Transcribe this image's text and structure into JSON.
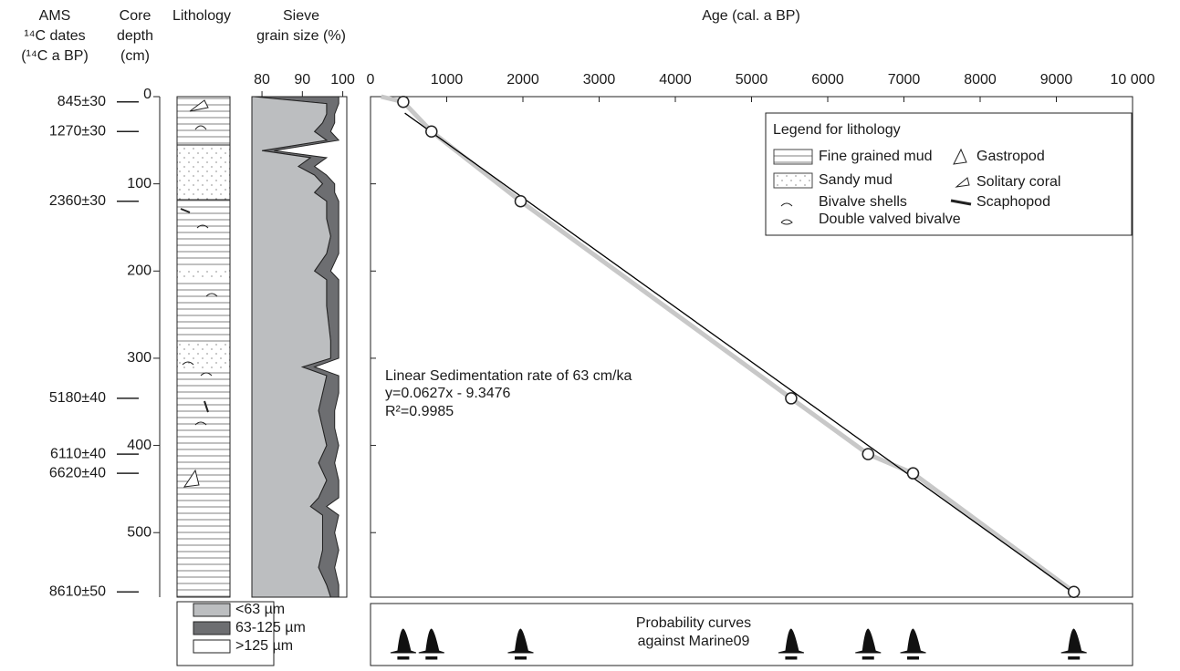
{
  "headers": {
    "ams": [
      "AMS",
      "¹⁴C dates",
      "(¹⁴C a BP)"
    ],
    "lithology": "Lithology"
  },
  "ams_dates": {
    "labels": [
      "845±30",
      "1270±30",
      "2360±30",
      "5180±40",
      "6110±40",
      "6620±40",
      "8610±50"
    ],
    "depths": [
      6,
      40,
      120,
      346,
      410,
      432,
      568
    ]
  },
  "chart_data": [
    {
      "type": "area",
      "title": [
        "Sieve",
        "grain size (%)"
      ],
      "xlim": [
        77.5,
        101
      ],
      "xticks": [
        80,
        90,
        100
      ],
      "ylim": [
        0,
        574
      ],
      "depths": [
        0,
        8,
        20,
        30,
        40,
        50,
        62,
        70,
        80,
        90,
        100,
        110,
        120,
        140,
        160,
        180,
        200,
        210,
        240,
        280,
        300,
        310,
        320,
        340,
        360,
        380,
        400,
        420,
        440,
        460,
        470,
        480,
        500,
        520,
        540,
        560,
        574
      ],
      "series": [
        {
          "name": "<63 µm",
          "color": "#bcbec0",
          "values": [
            78,
            96,
            96,
            95,
            93,
            96,
            80,
            92,
            89,
            93,
            95,
            93,
            96,
            96,
            97,
            96,
            93,
            96,
            96,
            97,
            97,
            90,
            96,
            95,
            94,
            95,
            96,
            94,
            96,
            94,
            92,
            95,
            95,
            95,
            94,
            96,
            97
          ]
        },
        {
          "name": "63-125 µm",
          "color": "#6d6e71",
          "values": [
            21,
            3,
            2,
            3,
            4,
            3,
            3,
            4,
            4,
            3,
            3,
            5,
            3,
            3,
            2,
            3,
            4,
            3,
            3,
            2,
            2,
            3,
            3,
            4,
            4,
            3,
            3,
            4,
            3,
            5,
            4,
            4,
            3,
            4,
            4,
            3,
            2
          ]
        },
        {
          "name": ">125 µm",
          "color": "#ffffff"
        }
      ]
    },
    {
      "type": "scatter",
      "title": "Age (cal. a BP)",
      "ylabel": [
        "Core",
        "depth",
        "(cm)"
      ],
      "xlim": [
        0,
        10000
      ],
      "xticks": [
        0,
        1000,
        2000,
        3000,
        4000,
        5000,
        6000,
        7000,
        8000,
        9000,
        {
          "value": 10000,
          "label": "10 000"
        }
      ],
      "ylim": [
        0,
        574
      ],
      "yticks": [
        0,
        100,
        200,
        300,
        400,
        500
      ],
      "x": [
        430,
        800,
        1970,
        5520,
        6530,
        7120,
        9230
      ],
      "values": [
        6,
        40,
        120,
        346,
        410,
        432,
        568
      ],
      "smooth": {
        "color": "#c8c8c8",
        "x": [
          140,
          430,
          800,
          1970,
          5520,
          6530,
          7120,
          9230
        ],
        "values": [
          0,
          6,
          40,
          120,
          346,
          410,
          432,
          568
        ]
      },
      "fit": {
        "color": "#000000",
        "x": [
          450,
          9230
        ],
        "values": [
          18.9,
          569.4
        ]
      },
      "annotations": [
        "Linear Sedimentation rate of 63 cm/ka",
        "y=0.0627x - 9.3476",
        "R²=0.9985"
      ],
      "legend": {
        "title": "Legend for lithology",
        "items": [
          "Fine grained mud",
          "Sandy mud",
          "Bivalve shells",
          "Double valved bivalve",
          "Gastropod",
          "Solitary coral",
          "Scaphopod"
        ]
      },
      "probability": [
        "Probability curves",
        "against Marine09"
      ]
    }
  ]
}
